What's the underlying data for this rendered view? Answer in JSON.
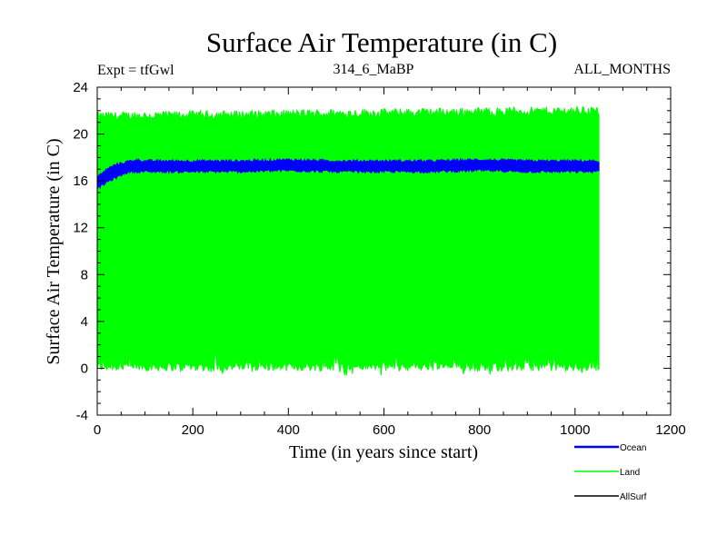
{
  "chart_data": {
    "type": "area",
    "title": "Surface Air Temperature (in C)",
    "subtitle_left": "Expt = tfGwl",
    "subtitle_center": "314_6_MaBP",
    "subtitle_right": "ALL_MONTHS",
    "xlabel": "Time (in years since start)",
    "ylabel": "Surface Air Temperature (in C)",
    "xlim": [
      0,
      1200
    ],
    "ylim": [
      -4,
      24
    ],
    "x_ticks": [
      0,
      200,
      400,
      600,
      800,
      1000,
      1200
    ],
    "y_ticks": [
      -4,
      0,
      4,
      8,
      12,
      16,
      20,
      24
    ],
    "x_minor_step": 50,
    "y_minor_step": 1,
    "grid": false,
    "legend_position": "bottom-right",
    "series": [
      {
        "name": "Ocean",
        "color": "#0000ff",
        "description": "band of monthly values",
        "x": [
          0,
          10,
          20,
          30,
          40,
          50,
          60,
          70,
          80,
          100,
          150,
          200,
          300,
          400,
          500,
          600,
          700,
          800,
          900,
          1000,
          1050
        ],
        "upper": [
          16.4,
          16.6,
          17.0,
          17.2,
          17.4,
          17.5,
          17.6,
          17.7,
          17.8,
          17.7,
          17.7,
          17.7,
          17.7,
          17.8,
          17.7,
          17.7,
          17.7,
          17.8,
          17.7,
          17.7,
          17.7
        ],
        "lower": [
          15.4,
          15.6,
          15.9,
          16.1,
          16.3,
          16.5,
          16.7,
          16.8,
          16.8,
          16.8,
          16.8,
          16.8,
          16.8,
          16.9,
          16.8,
          16.8,
          16.8,
          16.9,
          16.8,
          16.8,
          16.8
        ]
      },
      {
        "name": "Land",
        "color": "#00ff00",
        "description": "band of monthly values",
        "x": [
          0,
          1050
        ],
        "upper": [
          21.5,
          22.0
        ],
        "lower": [
          0.0,
          0.0
        ],
        "upper_noise": 0.8,
        "lower_noise": 1.3
      },
      {
        "name": "AllSurf",
        "color": "#000000",
        "x": [],
        "values": []
      }
    ]
  }
}
